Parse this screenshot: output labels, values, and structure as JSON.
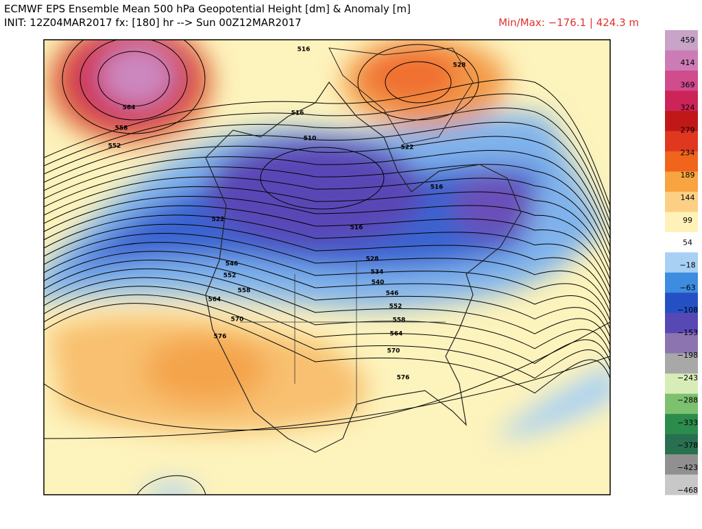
{
  "header": {
    "title": "ECMWF EPS Ensemble Mean 500 hPa Geopotential Height [dm] & Anomaly [m]",
    "init": "INIT: 12Z04MAR2017 fx: [180] hr --> Sun 00Z12MAR2017",
    "minmax": "Min/Max: −176.1 | 424.3 m"
  },
  "colorbar": {
    "labels": [
      "459",
      "414",
      "369",
      "324",
      "279",
      "234",
      "189",
      "144",
      "99",
      "54",
      "−18",
      "−63",
      "−108",
      "−153",
      "−198",
      "−243",
      "−288",
      "−333",
      "−378",
      "−423",
      "−468"
    ],
    "colors": [
      "#c8a4c8",
      "#cc7cb4",
      "#d04c8c",
      "#cc2458",
      "#c01818",
      "#e03820",
      "#f0641c",
      "#f8a440",
      "#fcd084",
      "#fff2b8",
      "#ffffff",
      "#a8d0f4",
      "#3c8ce0",
      "#2450c4",
      "#5848b4",
      "#8c74b0",
      "#a8a8a8",
      "#d8ecb8",
      "#7cc070",
      "#2c8c4c",
      "#287050",
      "#909090",
      "#c8c8c8"
    ]
  },
  "map": {
    "contour_labels": [
      "516",
      "528",
      "564",
      "558",
      "552",
      "516",
      "510",
      "522",
      "516",
      "516",
      "522",
      "528",
      "534",
      "540",
      "546",
      "552",
      "558",
      "564",
      "570",
      "576",
      "546",
      "552",
      "558",
      "564",
      "570",
      "576"
    ]
  }
}
